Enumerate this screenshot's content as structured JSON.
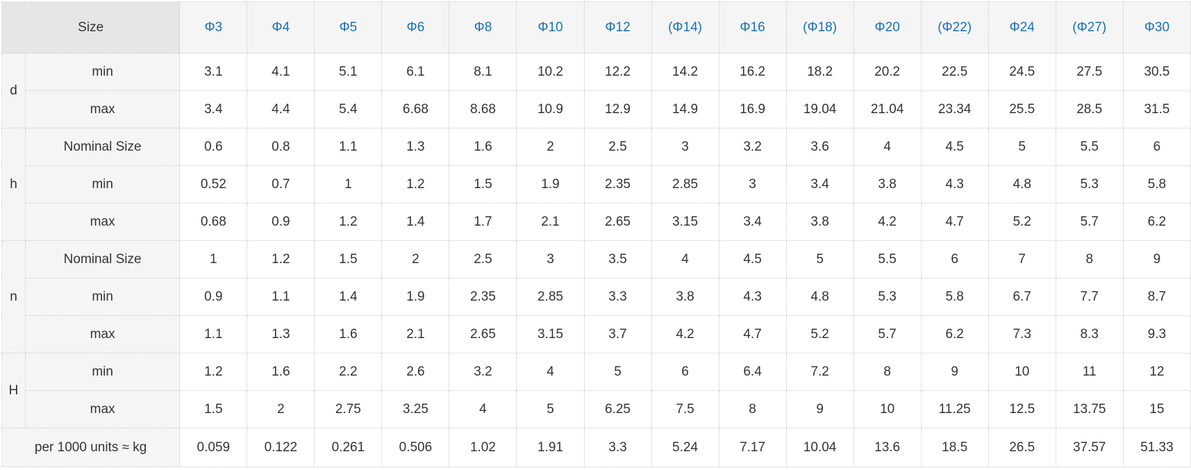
{
  "table": {
    "size_label": "Size",
    "columns": [
      "Φ3",
      "Φ4",
      "Φ5",
      "Φ6",
      "Φ8",
      "Φ10",
      "Φ12",
      "(Φ14)",
      "Φ16",
      "(Φ18)",
      "Φ20",
      "(Φ22)",
      "Φ24",
      "(Φ27)",
      "Φ30"
    ],
    "groups": [
      {
        "label": "d",
        "rows": [
          {
            "label": "min",
            "values": [
              "3.1",
              "4.1",
              "5.1",
              "6.1",
              "8.1",
              "10.2",
              "12.2",
              "14.2",
              "16.2",
              "18.2",
              "20.2",
              "22.5",
              "24.5",
              "27.5",
              "30.5"
            ]
          },
          {
            "label": "max",
            "values": [
              "3.4",
              "4.4",
              "5.4",
              "6.68",
              "8.68",
              "10.9",
              "12.9",
              "14.9",
              "16.9",
              "19.04",
              "21.04",
              "23.34",
              "25.5",
              "28.5",
              "31.5"
            ]
          }
        ]
      },
      {
        "label": "h",
        "rows": [
          {
            "label": "Nominal Size",
            "values": [
              "0.6",
              "0.8",
              "1.1",
              "1.3",
              "1.6",
              "2",
              "2.5",
              "3",
              "3.2",
              "3.6",
              "4",
              "4.5",
              "5",
              "5.5",
              "6"
            ]
          },
          {
            "label": "min",
            "values": [
              "0.52",
              "0.7",
              "1",
              "1.2",
              "1.5",
              "1.9",
              "2.35",
              "2.85",
              "3",
              "3.4",
              "3.8",
              "4.3",
              "4.8",
              "5.3",
              "5.8"
            ]
          },
          {
            "label": "max",
            "values": [
              "0.68",
              "0.9",
              "1.2",
              "1.4",
              "1.7",
              "2.1",
              "2.65",
              "3.15",
              "3.4",
              "3.8",
              "4.2",
              "4.7",
              "5.2",
              "5.7",
              "6.2"
            ]
          }
        ]
      },
      {
        "label": "n",
        "rows": [
          {
            "label": "Nominal Size",
            "values": [
              "1",
              "1.2",
              "1.5",
              "2",
              "2.5",
              "3",
              "3.5",
              "4",
              "4.5",
              "5",
              "5.5",
              "6",
              "7",
              "8",
              "9"
            ]
          },
          {
            "label": "min",
            "values": [
              "0.9",
              "1.1",
              "1.4",
              "1.9",
              "2.35",
              "2.85",
              "3.3",
              "3.8",
              "4.3",
              "4.8",
              "5.3",
              "5.8",
              "6.7",
              "7.7",
              "8.7"
            ]
          },
          {
            "label": "max",
            "values": [
              "1.1",
              "1.3",
              "1.6",
              "2.1",
              "2.65",
              "3.15",
              "3.7",
              "4.2",
              "4.7",
              "5.2",
              "5.7",
              "6.2",
              "7.3",
              "8.3",
              "9.3"
            ]
          }
        ]
      },
      {
        "label": "H",
        "rows": [
          {
            "label": "min",
            "values": [
              "1.2",
              "1.6",
              "2.2",
              "2.6",
              "3.2",
              "4",
              "5",
              "6",
              "6.4",
              "7.2",
              "8",
              "9",
              "10",
              "11",
              "12"
            ]
          },
          {
            "label": "max",
            "values": [
              "1.5",
              "2",
              "2.75",
              "3.25",
              "4",
              "5",
              "6.25",
              "7.5",
              "8",
              "9",
              "10",
              "11.25",
              "12.5",
              "13.75",
              "15"
            ]
          }
        ]
      }
    ],
    "weight": {
      "label": "per 1000 units ≈ kg",
      "values": [
        "0.059",
        "0.122",
        "0.261",
        "0.506",
        "1.02",
        "1.91",
        "3.3",
        "5.24",
        "7.17",
        "10.04",
        "13.6",
        "18.5",
        "26.5",
        "37.57",
        "51.33"
      ]
    },
    "colors": {
      "header_text": "#1a6fb3",
      "header_bg": "#f5f5f5",
      "size_bg": "#e6e6e6",
      "cell_bg": "#ffffff",
      "border": "#c8c8c8",
      "text": "#333333"
    }
  }
}
